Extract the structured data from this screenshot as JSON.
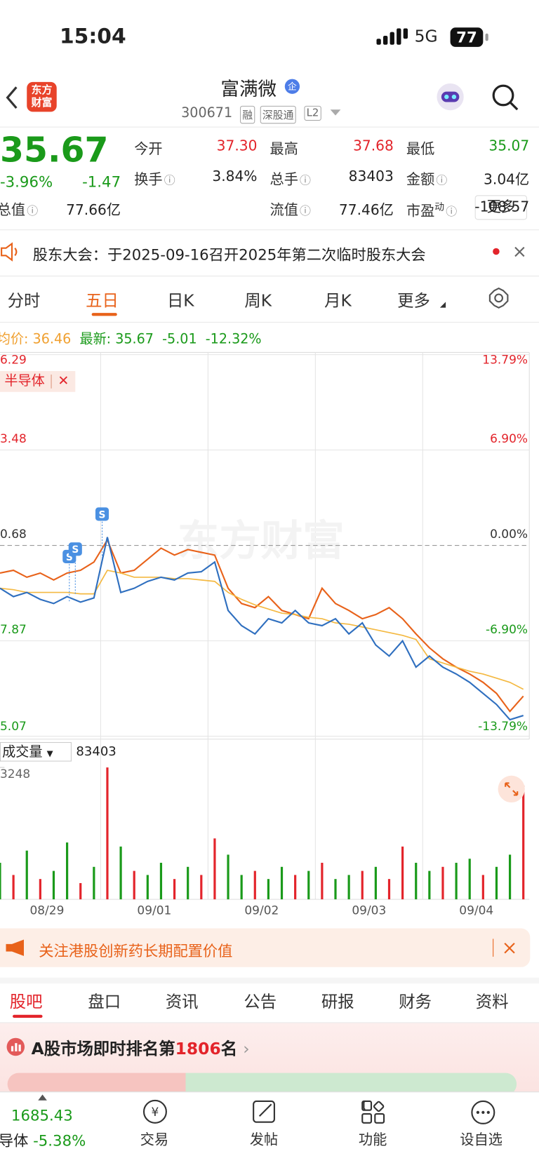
{
  "status": {
    "time": "15:04",
    "network": "5G",
    "battery": "77"
  },
  "header": {
    "logo": [
      "东方",
      "财富"
    ],
    "name": "富满微",
    "badge": "企",
    "code": "300671",
    "tags": [
      "融",
      "深股通",
      "L2"
    ]
  },
  "quote": {
    "price": "35.67",
    "change_pct": "-3.96%",
    "change": "-1.47",
    "fields": [
      {
        "label": "今开",
        "value": "37.30"
      },
      {
        "label": "最高",
        "value": "37.68"
      },
      {
        "label": "最低",
        "value": "35.07"
      },
      {
        "label": "换手",
        "value": "3.84%"
      },
      {
        "label": "总手",
        "value": "83403"
      },
      {
        "label": "金额",
        "value": "3.04亿"
      },
      {
        "label": "总值",
        "value": "77.66亿"
      },
      {
        "label": "流值",
        "value": "77.46亿"
      },
      {
        "label": "市盈",
        "sup": "动",
        "value": "-108.57"
      }
    ],
    "more": "更多"
  },
  "notice": "股东大会：于2025-09-16召开2025年第二次临时股东大会",
  "tabs": [
    "分时",
    "五日",
    "日K",
    "周K",
    "月K",
    "更多"
  ],
  "info": {
    "avg_label": "均价:",
    "avg": "36.46",
    "last_label": "最新:",
    "last": "35.67",
    "change": "-5.01",
    "change_pct": "-12.32%"
  },
  "overlay": "半导体",
  "watermark": "东方财富",
  "chart_data": [
    {
      "type": "line",
      "ylim": [
        -13.79,
        13.79
      ],
      "yticks": [
        {
          "value": 13.79,
          "label": "13.79%"
        },
        {
          "value": 6.9,
          "label": "6.90%"
        },
        {
          "value": 0,
          "label": "0.00%"
        },
        {
          "value": -6.9,
          "label": "-6.90%"
        },
        {
          "value": -13.79,
          "label": "-13.79%"
        }
      ],
      "left_labels": [
        "6.29",
        "3.48",
        "0.68",
        "7.87",
        "5.07"
      ],
      "series": [
        {
          "color": "#e8621a",
          "values": [
            -2.0,
            -1.8,
            -2.3,
            -2.0,
            -2.5,
            -2.0,
            -1.8,
            -1.2,
            0.4,
            -2.0,
            -1.8,
            -1.0,
            -0.2,
            -0.7,
            -0.3,
            -0.5,
            -0.7,
            -3.1,
            -4.2,
            -4.5,
            -3.7,
            -4.7,
            -5.0,
            -5.3,
            -3.1,
            -4.2,
            -4.7,
            -5.3,
            -5.0,
            -4.5,
            -5.3,
            -6.4,
            -7.4,
            -8.2,
            -8.8,
            -9.3,
            -9.9,
            -10.7,
            -12.0,
            -10.9
          ]
        },
        {
          "color": "#f4b942",
          "values": [
            -3.1,
            -3.2,
            -3.4,
            -3.4,
            -3.4,
            -3.4,
            -3.5,
            -3.5,
            -1.8,
            -2.0,
            -2.3,
            -2.3,
            -2.3,
            -2.4,
            -2.4,
            -2.5,
            -2.6,
            -3.4,
            -3.9,
            -4.3,
            -4.6,
            -4.9,
            -5.0,
            -5.2,
            -5.3,
            -5.6,
            -5.7,
            -5.9,
            -6.1,
            -6.3,
            -6.5,
            -6.8,
            -8.2,
            -8.5,
            -8.8,
            -9.1,
            -9.3,
            -9.6,
            -9.9,
            -10.4
          ]
        },
        {
          "color": "#2f6fbf",
          "values": [
            -3.1,
            -3.7,
            -3.4,
            -3.9,
            -4.2,
            -3.7,
            -4.1,
            -3.8,
            0.6,
            -3.4,
            -3.1,
            -2.6,
            -2.3,
            -2.5,
            -2.0,
            -1.9,
            -1.2,
            -4.7,
            -5.8,
            -6.4,
            -5.3,
            -5.6,
            -4.7,
            -5.6,
            -5.8,
            -5.3,
            -6.4,
            -5.6,
            -7.2,
            -8.0,
            -6.9,
            -8.8,
            -8.0,
            -8.8,
            -9.3,
            -9.9,
            -10.7,
            -11.5,
            -12.6,
            -12.3
          ]
        }
      ]
    },
    {
      "type": "bar",
      "title": "成交量",
      "total": "83403",
      "ylim": [
        0,
        3248
      ],
      "yticks": [
        3248
      ],
      "values": [
        900,
        600,
        1200,
        500,
        700,
        1400,
        400,
        800,
        3248,
        1300,
        700,
        600,
        900,
        500,
        800,
        600,
        1500,
        1100,
        600,
        700,
        500,
        800,
        600,
        700,
        900,
        500,
        600,
        700,
        800,
        500,
        1300,
        900,
        700,
        800,
        900,
        1000,
        600,
        800,
        1100,
        2800
      ],
      "colors": [
        "#1a9a1a",
        "#e3242b",
        "#1a9a1a",
        "#e3242b",
        "#1a9a1a",
        "#1a9a1a",
        "#e3242b",
        "#1a9a1a",
        "#e3242b",
        "#1a9a1a",
        "#e3242b",
        "#1a9a1a",
        "#1a9a1a",
        "#e3242b",
        "#1a9a1a",
        "#e3242b",
        "#e3242b",
        "#1a9a1a",
        "#1a9a1a",
        "#e3242b",
        "#1a9a1a",
        "#1a9a1a",
        "#e3242b",
        "#1a9a1a",
        "#e3242b",
        "#1a9a1a",
        "#1a9a1a",
        "#e3242b",
        "#1a9a1a",
        "#e3242b",
        "#e3242b",
        "#1a9a1a",
        "#1a9a1a",
        "#e3242b",
        "#1a9a1a",
        "#1a9a1a",
        "#e3242b",
        "#1a9a1a",
        "#1a9a1a",
        "#e3242b"
      ]
    }
  ],
  "dates": [
    "08/29",
    "09/01",
    "09/02",
    "09/03",
    "09/04"
  ],
  "banner": "关注港股创新药长期配置价值",
  "section_tabs": [
    "股吧",
    "盘口",
    "资讯",
    "公告",
    "研报",
    "财务",
    "资料"
  ],
  "rank": {
    "prefix": "A股市场即时排名第",
    "number": "1806",
    "suffix": "名"
  },
  "bottom": {
    "index_value": "1685.43",
    "index_name": "半导体",
    "index_change": "-5.38%",
    "nav": [
      "交易",
      "发帖",
      "功能",
      "设自选"
    ]
  }
}
